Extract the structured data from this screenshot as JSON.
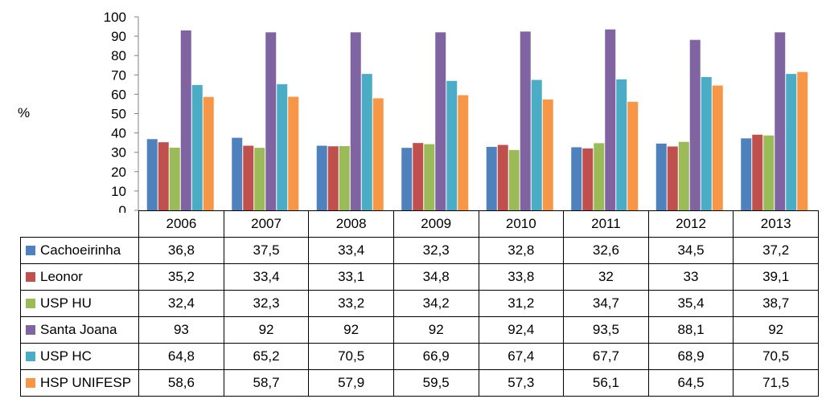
{
  "chart_data": {
    "type": "bar",
    "ylabel": "%",
    "ylim": [
      0,
      100
    ],
    "yticks": [
      0,
      10,
      20,
      30,
      40,
      50,
      60,
      70,
      80,
      90,
      100
    ],
    "grid": false,
    "categories": [
      "2006",
      "2007",
      "2008",
      "2009",
      "2010",
      "2011",
      "2012",
      "2013"
    ],
    "series": [
      {
        "name": "Cachoeirinha",
        "color": "#4f81bd",
        "values": [
          36.8,
          37.5,
          33.4,
          32.3,
          32.8,
          32.6,
          34.5,
          37.2
        ],
        "labels": [
          "36,8",
          "37,5",
          "33,4",
          "32,3",
          "32,8",
          "32,6",
          "34,5",
          "37,2"
        ]
      },
      {
        "name": "Leonor",
        "color": "#c0504d",
        "values": [
          35.2,
          33.4,
          33.1,
          34.8,
          33.8,
          32,
          33,
          39.1
        ],
        "labels": [
          "35,2",
          "33,4",
          "33,1",
          "34,8",
          "33,8",
          "32",
          "33",
          "39,1"
        ]
      },
      {
        "name": "USP HU",
        "color": "#9bbb59",
        "values": [
          32.4,
          32.3,
          33.2,
          34.2,
          31.2,
          34.7,
          35.4,
          38.7
        ],
        "labels": [
          "32,4",
          "32,3",
          "33,2",
          "34,2",
          "31,2",
          "34,7",
          "35,4",
          "38,7"
        ]
      },
      {
        "name": "Santa Joana",
        "color": "#8064a2",
        "values": [
          93,
          92,
          92,
          92,
          92.4,
          93.5,
          88.1,
          92
        ],
        "labels": [
          "93",
          "92",
          "92",
          "92",
          "92,4",
          "93,5",
          "88,1",
          "92"
        ]
      },
      {
        "name": "USP HC",
        "color": "#4bacc6",
        "values": [
          64.8,
          65.2,
          70.5,
          66.9,
          67.4,
          67.7,
          68.9,
          70.5
        ],
        "labels": [
          "64,8",
          "65,2",
          "70,5",
          "66,9",
          "67,4",
          "67,7",
          "68,9",
          "70,5"
        ]
      },
      {
        "name": "HSP UNIFESP",
        "color": "#f79646",
        "values": [
          58.6,
          58.7,
          57.9,
          59.5,
          57.3,
          56.1,
          64.5,
          71.5
        ],
        "labels": [
          "58,6",
          "58,7",
          "57,9",
          "59,5",
          "57,3",
          "56,1",
          "64,5",
          "71,5"
        ]
      }
    ]
  }
}
